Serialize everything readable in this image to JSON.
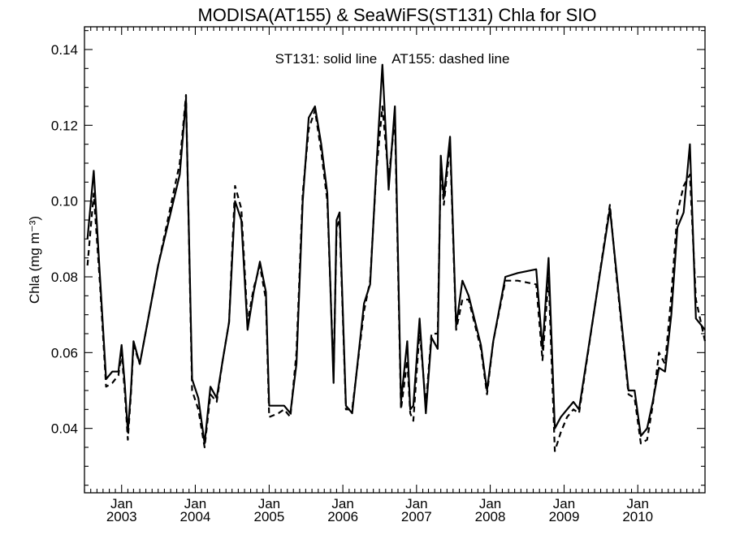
{
  "chart_data": {
    "type": "line",
    "title": "MODISA(AT155) & SeaWiFS(ST131)  Chla for SIO",
    "xlabel": "",
    "ylabel": "Chla (mg m⁻³)",
    "annotation": "ST131: solid line    AT155: dashed line",
    "xlim": [
      "2002-07-01",
      "2010-11-30"
    ],
    "ylim": [
      0.023,
      0.146
    ],
    "y_ticks": [
      0.04,
      0.06,
      0.08,
      0.1,
      0.12,
      0.14
    ],
    "y_tick_labels": [
      "0.04",
      "0.06",
      "0.08",
      "0.10",
      "0.12",
      "0.14"
    ],
    "x_ticks": [
      {
        "date": "2003-01-01",
        "month": "Jan",
        "year": "2003"
      },
      {
        "date": "2004-01-01",
        "month": "Jan",
        "year": "2004"
      },
      {
        "date": "2005-01-01",
        "month": "Jan",
        "year": "2005"
      },
      {
        "date": "2006-01-01",
        "month": "Jan",
        "year": "2006"
      },
      {
        "date": "2007-01-01",
        "month": "Jan",
        "year": "2007"
      },
      {
        "date": "2008-01-01",
        "month": "Jan",
        "year": "2008"
      },
      {
        "date": "2009-01-01",
        "month": "Jan",
        "year": "2009"
      },
      {
        "date": "2010-01-01",
        "month": "Jan",
        "year": "2010"
      }
    ],
    "grid": false,
    "series": [
      {
        "name": "ST131",
        "style": "solid",
        "color": "#000000",
        "points": [
          [
            "2002-07-16",
            0.09
          ],
          [
            "2002-08-16",
            0.108
          ],
          [
            "2002-09-16",
            0.08
          ],
          [
            "2002-10-16",
            0.053
          ],
          [
            "2002-11-16",
            0.055
          ],
          [
            "2002-12-16",
            0.055
          ],
          [
            "2003-01-01",
            0.062
          ],
          [
            "2003-01-16",
            0.052
          ],
          [
            "2003-02-01",
            0.039
          ],
          [
            "2003-02-16",
            0.05
          ],
          [
            "2003-03-01",
            0.063
          ],
          [
            "2003-04-01",
            0.057
          ],
          [
            "2003-07-01",
            0.083
          ],
          [
            "2003-10-16",
            0.107
          ],
          [
            "2003-11-16",
            0.127
          ],
          [
            "2003-12-16",
            0.053
          ],
          [
            "2004-01-16",
            0.048
          ],
          [
            "2004-02-16",
            0.036
          ],
          [
            "2004-03-16",
            0.051
          ],
          [
            "2004-04-16",
            0.048
          ],
          [
            "2004-05-16",
            0.058
          ],
          [
            "2004-06-16",
            0.068
          ],
          [
            "2004-07-16",
            0.1
          ],
          [
            "2004-08-16",
            0.095
          ],
          [
            "2004-09-16",
            0.066
          ],
          [
            "2004-10-16",
            0.076
          ],
          [
            "2004-11-16",
            0.084
          ],
          [
            "2004-12-16",
            0.076
          ],
          [
            "2005-01-01",
            0.046
          ],
          [
            "2005-02-16",
            0.046
          ],
          [
            "2005-03-16",
            0.046
          ],
          [
            "2005-04-16",
            0.044
          ],
          [
            "2005-05-16",
            0.057
          ],
          [
            "2005-06-16",
            0.1
          ],
          [
            "2005-07-16",
            0.122
          ],
          [
            "2005-08-16",
            0.125
          ],
          [
            "2005-09-16",
            0.115
          ],
          [
            "2005-10-16",
            0.102
          ],
          [
            "2005-11-16",
            0.052
          ],
          [
            "2005-12-01",
            0.095
          ],
          [
            "2005-12-16",
            0.097
          ],
          [
            "2006-01-16",
            0.046
          ],
          [
            "2006-02-16",
            0.044
          ],
          [
            "2006-04-16",
            0.073
          ],
          [
            "2006-05-16",
            0.078
          ],
          [
            "2006-06-16",
            0.109
          ],
          [
            "2006-07-16",
            0.136
          ],
          [
            "2006-08-16",
            0.103
          ],
          [
            "2006-09-16",
            0.125
          ],
          [
            "2006-10-16",
            0.047
          ],
          [
            "2006-11-16",
            0.063
          ],
          [
            "2006-12-01",
            0.045
          ],
          [
            "2006-12-16",
            0.046
          ],
          [
            "2007-01-16",
            0.069
          ],
          [
            "2007-02-16",
            0.044
          ],
          [
            "2007-03-16",
            0.064
          ],
          [
            "2007-04-16",
            0.061
          ],
          [
            "2007-05-01",
            0.112
          ],
          [
            "2007-05-16",
            0.101
          ],
          [
            "2007-06-16",
            0.117
          ],
          [
            "2007-07-16",
            0.067
          ],
          [
            "2007-08-16",
            0.079
          ],
          [
            "2007-09-16",
            0.075
          ],
          [
            "2007-11-16",
            0.062
          ],
          [
            "2007-12-16",
            0.05
          ],
          [
            "2008-01-16",
            0.063
          ],
          [
            "2008-03-16",
            0.08
          ],
          [
            "2008-05-16",
            0.081
          ],
          [
            "2008-08-16",
            0.082
          ],
          [
            "2008-09-16",
            0.061
          ],
          [
            "2008-10-16",
            0.085
          ],
          [
            "2008-11-16",
            0.04
          ],
          [
            "2008-12-16",
            0.043
          ],
          [
            "2009-01-16",
            0.045
          ],
          [
            "2009-02-16",
            0.047
          ],
          [
            "2009-03-16",
            0.045
          ],
          [
            "2009-08-16",
            0.098
          ],
          [
            "2009-09-16",
            0.082
          ],
          [
            "2009-11-16",
            0.05
          ],
          [
            "2009-12-16",
            0.05
          ],
          [
            "2010-01-16",
            0.038
          ],
          [
            "2010-02-16",
            0.04
          ],
          [
            "2010-03-16",
            0.047
          ],
          [
            "2010-04-16",
            0.056
          ],
          [
            "2010-05-16",
            0.055
          ],
          [
            "2010-06-16",
            0.07
          ],
          [
            "2010-07-16",
            0.093
          ],
          [
            "2010-08-16",
            0.097
          ],
          [
            "2010-09-16",
            0.115
          ],
          [
            "2010-10-16",
            0.069
          ],
          [
            "2010-11-30",
            0.066
          ]
        ]
      },
      {
        "name": "AT155",
        "style": "dashed",
        "color": "#000000",
        "points": [
          [
            "2002-07-16",
            0.083
          ],
          [
            "2002-08-16",
            0.102
          ],
          [
            "2002-09-16",
            0.078
          ],
          [
            "2002-10-16",
            0.051
          ],
          [
            "2002-11-16",
            0.052
          ],
          [
            "2002-12-16",
            0.054
          ],
          [
            "2003-01-01",
            0.06
          ],
          [
            "2003-01-16",
            0.05
          ],
          [
            "2003-02-01",
            0.037
          ],
          [
            "2003-02-16",
            0.049
          ],
          [
            "2003-03-01",
            0.062
          ],
          [
            "2003-04-01",
            0.057
          ],
          [
            "2003-07-01",
            0.083
          ],
          [
            "2003-10-16",
            0.11
          ],
          [
            "2003-11-16",
            0.128
          ],
          [
            "2003-12-16",
            0.05
          ],
          [
            "2004-01-16",
            0.045
          ],
          [
            "2004-02-16",
            0.035
          ],
          [
            "2004-03-16",
            0.049
          ],
          [
            "2004-04-16",
            0.047
          ],
          [
            "2004-05-16",
            0.058
          ],
          [
            "2004-06-16",
            0.068
          ],
          [
            "2004-07-16",
            0.104
          ],
          [
            "2004-08-16",
            0.098
          ],
          [
            "2004-09-16",
            0.068
          ],
          [
            "2004-10-16",
            0.077
          ],
          [
            "2004-11-16",
            0.083
          ],
          [
            "2004-12-16",
            0.074
          ],
          [
            "2005-01-01",
            0.043
          ],
          [
            "2005-02-16",
            0.044
          ],
          [
            "2005-03-16",
            0.045
          ],
          [
            "2005-04-16",
            0.043
          ],
          [
            "2005-05-16",
            0.06
          ],
          [
            "2005-06-16",
            0.102
          ],
          [
            "2005-07-16",
            0.119
          ],
          [
            "2005-08-16",
            0.124
          ],
          [
            "2005-09-16",
            0.113
          ],
          [
            "2005-10-16",
            0.1
          ],
          [
            "2005-11-16",
            0.054
          ],
          [
            "2005-12-01",
            0.093
          ],
          [
            "2005-12-16",
            0.095
          ],
          [
            "2006-01-16",
            0.045
          ],
          [
            "2006-02-16",
            0.045
          ],
          [
            "2006-04-16",
            0.071
          ],
          [
            "2006-05-16",
            0.079
          ],
          [
            "2006-06-16",
            0.108
          ],
          [
            "2006-07-16",
            0.125
          ],
          [
            "2006-08-16",
            0.106
          ],
          [
            "2006-09-16",
            0.122
          ],
          [
            "2006-10-16",
            0.045
          ],
          [
            "2006-11-16",
            0.058
          ],
          [
            "2006-12-01",
            0.044
          ],
          [
            "2006-12-16",
            0.042
          ],
          [
            "2007-01-16",
            0.066
          ],
          [
            "2007-02-16",
            0.046
          ],
          [
            "2007-03-16",
            0.065
          ],
          [
            "2007-04-16",
            0.065
          ],
          [
            "2007-05-01",
            0.11
          ],
          [
            "2007-05-16",
            0.099
          ],
          [
            "2007-06-16",
            0.115
          ],
          [
            "2007-07-16",
            0.066
          ],
          [
            "2007-08-16",
            0.074
          ],
          [
            "2007-09-16",
            0.074
          ],
          [
            "2007-11-16",
            0.061
          ],
          [
            "2007-12-16",
            0.049
          ],
          [
            "2008-01-16",
            0.063
          ],
          [
            "2008-03-16",
            0.079
          ],
          [
            "2008-05-16",
            0.079
          ],
          [
            "2008-08-16",
            0.078
          ],
          [
            "2008-09-16",
            0.058
          ],
          [
            "2008-10-16",
            0.08
          ],
          [
            "2008-11-16",
            0.034
          ],
          [
            "2008-12-16",
            0.039
          ],
          [
            "2009-01-16",
            0.043
          ],
          [
            "2009-02-16",
            0.045
          ],
          [
            "2009-03-16",
            0.044
          ],
          [
            "2009-08-16",
            0.099
          ],
          [
            "2009-09-16",
            0.081
          ],
          [
            "2009-11-16",
            0.049
          ],
          [
            "2009-12-16",
            0.048
          ],
          [
            "2010-01-16",
            0.036
          ],
          [
            "2010-02-16",
            0.037
          ],
          [
            "2010-03-16",
            0.046
          ],
          [
            "2010-04-16",
            0.06
          ],
          [
            "2010-05-16",
            0.057
          ],
          [
            "2010-06-16",
            0.075
          ],
          [
            "2010-07-16",
            0.097
          ],
          [
            "2010-08-16",
            0.104
          ],
          [
            "2010-09-16",
            0.107
          ],
          [
            "2010-10-16",
            0.074
          ],
          [
            "2010-11-30",
            0.063
          ]
        ]
      }
    ]
  }
}
